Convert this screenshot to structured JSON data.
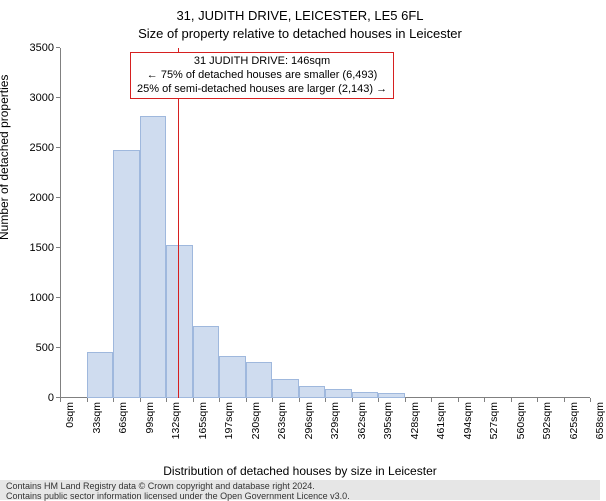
{
  "title_line1": "31, JUDITH DRIVE, LEICESTER, LE5 6FL",
  "title_line2": "Size of property relative to detached houses in Leicester",
  "ylabel": "Number of detached properties",
  "xlabel": "Distribution of detached houses by size in Leicester",
  "attribution_line1": "Contains HM Land Registry data © Crown copyright and database right 2024.",
  "attribution_line2": "Contains public sector information licensed under the Open Government Licence v3.0.",
  "chart": {
    "type": "histogram",
    "ylim": [
      0,
      3500
    ],
    "ytick_step": 500,
    "bin_width_sqm": 33,
    "xtick_sqm": [
      0,
      33,
      66,
      99,
      132,
      165,
      197,
      230,
      263,
      296,
      329,
      362,
      395,
      428,
      461,
      494,
      527,
      560,
      592,
      625,
      658
    ],
    "xtick_labels": [
      "0sqm",
      "33sqm",
      "66sqm",
      "99sqm",
      "132sqm",
      "165sqm",
      "197sqm",
      "230sqm",
      "263sqm",
      "296sqm",
      "329sqm",
      "362sqm",
      "395sqm",
      "428sqm",
      "461sqm",
      "494sqm",
      "527sqm",
      "560sqm",
      "592sqm",
      "625sqm",
      "658sqm"
    ],
    "values": [
      0,
      460,
      2480,
      2820,
      1530,
      720,
      420,
      360,
      190,
      120,
      90,
      60,
      50,
      0,
      0,
      0,
      0,
      0,
      0,
      0
    ],
    "bar_fill": "#cfdcef",
    "bar_border": "#9fb8dd",
    "axis_color": "#808080",
    "background_color": "#ffffff",
    "reference_line": {
      "sqm": 146,
      "color": "#d62020"
    },
    "info_box": {
      "line1": "31 JUDITH DRIVE: 146sqm",
      "line2": "← 75% of detached houses are smaller (6,493)",
      "line3": "25% of semi-detached houses are larger (2,143) →",
      "border_color": "#d62020"
    }
  },
  "fontsize": {
    "title": 13,
    "axis_label": 12,
    "tick": 11,
    "xtick": 10.5,
    "info": 11,
    "attribution": 9
  }
}
